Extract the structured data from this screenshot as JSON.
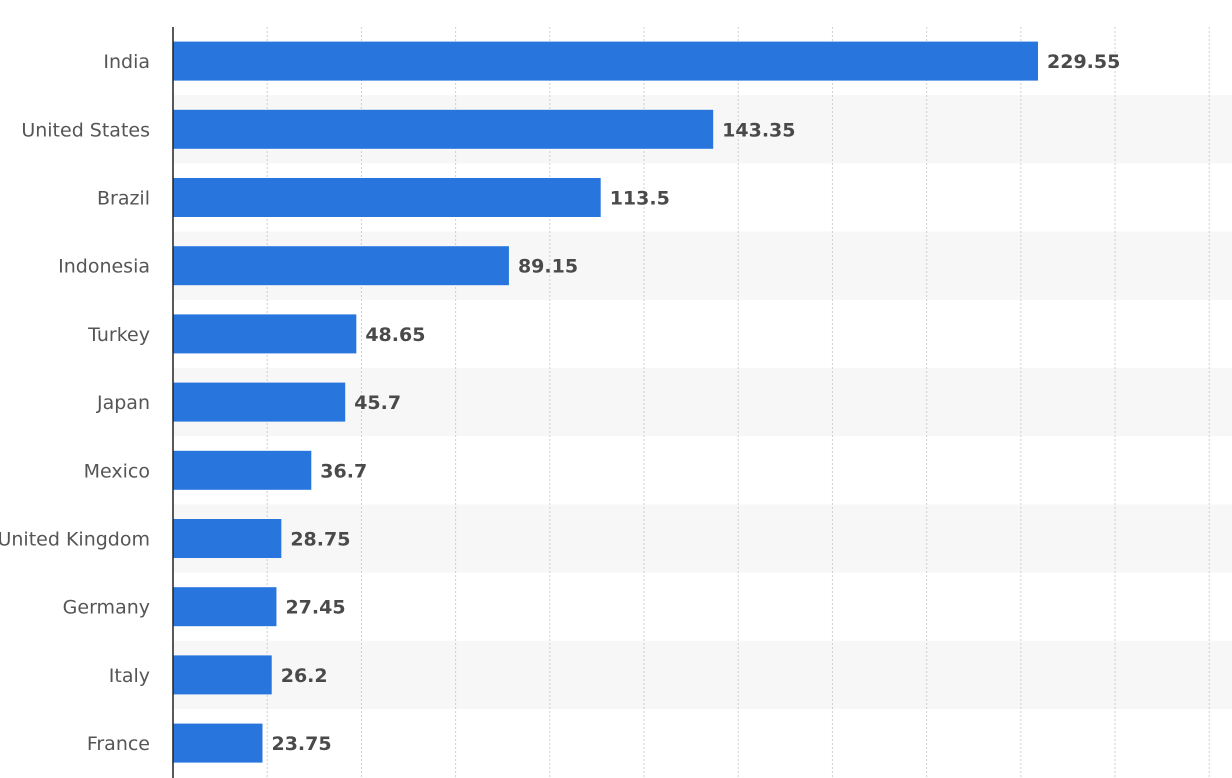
{
  "chart_data": {
    "type": "bar",
    "orientation": "horizontal",
    "title": "",
    "xlabel": "",
    "ylabel": "",
    "categories": [
      "India",
      "United States",
      "Brazil",
      "Indonesia",
      "Turkey",
      "Japan",
      "Mexico",
      "United Kingdom",
      "Germany",
      "Italy",
      "France"
    ],
    "values": [
      229.55,
      143.35,
      113.5,
      89.15,
      48.65,
      45.7,
      36.7,
      28.75,
      27.45,
      26.2,
      23.75
    ],
    "value_labels": [
      "229.55",
      "143.35",
      "113.5",
      "89.15",
      "48.65",
      "45.7",
      "36.7",
      "28.75",
      "27.45",
      "26.2",
      "23.75"
    ],
    "xlim": [
      0,
      275
    ],
    "grid": true,
    "legend": "none",
    "colors": {
      "bar": "#2876dd",
      "grid": "#cfcfcf",
      "axis": "#222222",
      "band": "#f7f7f7"
    }
  }
}
